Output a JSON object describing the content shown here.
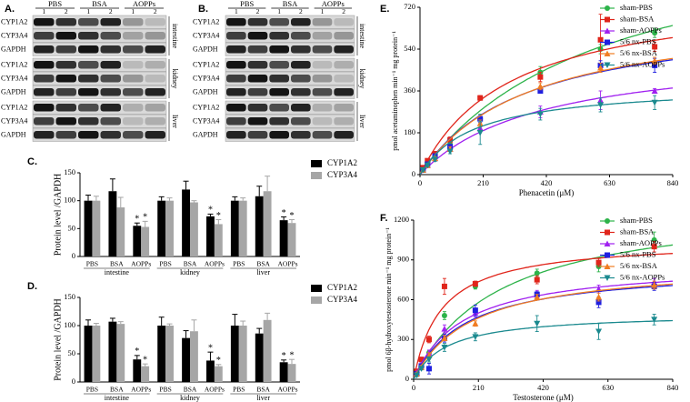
{
  "blots": [
    {
      "panel": "A.",
      "treatments": [
        "PBS",
        "BSA",
        "AOPPs"
      ],
      "lanes": [
        "1",
        "2"
      ],
      "proteins": [
        "CYP1A2",
        "CYP3A4",
        "GAPDH"
      ],
      "tissues": [
        "intestine",
        "kidney",
        "liver"
      ]
    },
    {
      "panel": "B.",
      "treatments": [
        "PBS",
        "BSA",
        "AOPPs"
      ],
      "lanes": [
        "1",
        "2"
      ],
      "proteins": [
        "CYP1A2",
        "CYP3A4",
        "GAPDH"
      ],
      "tissues": [
        "intestine",
        "kidney",
        "liver"
      ]
    }
  ],
  "chart_data": [
    {
      "type": "bar",
      "panel": "C.",
      "y_label": "Protein level /GAPDH",
      "categories": [
        "PBS",
        "BSA",
        "AOPPs",
        "PBS",
        "BSA",
        "AOPPs",
        "PBS",
        "BSA",
        "AOPPs"
      ],
      "groups": [
        "intestine",
        "kidney",
        "liver"
      ],
      "ylim": [
        0,
        150
      ],
      "yticks": [
        0,
        50,
        100,
        150
      ],
      "legend": "right",
      "series": [
        {
          "name": "CYP1A2",
          "color": "#000000",
          "values": [
            100,
            117,
            55,
            100,
            120,
            72,
            100,
            108,
            65
          ],
          "errors": [
            10,
            22,
            5,
            7,
            15,
            4,
            7,
            18,
            6
          ],
          "labels": [
            null,
            null,
            "*",
            null,
            null,
            "*",
            null,
            null,
            "*"
          ]
        },
        {
          "name": "CYP3A4",
          "color": "#a6a6a6",
          "values": [
            100,
            88,
            53,
            100,
            97,
            58,
            100,
            117,
            60
          ],
          "errors": [
            8,
            18,
            10,
            5,
            3,
            8,
            5,
            27,
            6
          ],
          "labels": [
            null,
            null,
            "*",
            null,
            null,
            "*",
            null,
            null,
            "*"
          ]
        }
      ]
    },
    {
      "type": "bar",
      "panel": "D.",
      "y_label": "Protein level /GAPDH",
      "categories": [
        "PBS",
        "BSA",
        "AOPPs",
        "PBS",
        "BSA",
        "AOPPs",
        "PBS",
        "BSA",
        "AOPPs"
      ],
      "groups": [
        "intestine",
        "kidney",
        "liver"
      ],
      "ylim": [
        0,
        150
      ],
      "yticks": [
        0,
        50,
        100,
        150
      ],
      "legend": "right",
      "series": [
        {
          "name": "CYP1A2",
          "color": "#000000",
          "values": [
            100,
            107,
            40,
            100,
            78,
            38,
            100,
            86,
            35
          ],
          "errors": [
            10,
            6,
            7,
            15,
            13,
            15,
            20,
            9,
            4
          ],
          "labels": [
            null,
            null,
            "*",
            null,
            null,
            "*",
            null,
            null,
            "*"
          ]
        },
        {
          "name": "CYP3A4",
          "color": "#a6a6a6",
          "values": [
            100,
            103,
            28,
            100,
            90,
            28,
            100,
            110,
            32
          ],
          "errors": [
            4,
            4,
            4,
            3,
            20,
            3,
            8,
            12,
            8
          ],
          "labels": [
            null,
            null,
            "*",
            null,
            null,
            "*",
            null,
            null,
            "*"
          ]
        }
      ]
    },
    {
      "type": "scatter",
      "panel": "E.",
      "x_label": "Phenacetin (μM)",
      "y_label": "pmol acetaminophen min⁻¹ mg protein⁻¹",
      "x": [
        10,
        25,
        50,
        100,
        200,
        400,
        600,
        780
      ],
      "xlim": [
        0,
        840
      ],
      "xticks": [
        0,
        210,
        420,
        630,
        840
      ],
      "ylim": [
        0,
        720
      ],
      "yticks": [
        0,
        180,
        360,
        540,
        720
      ],
      "legend": "upper right",
      "series": [
        {
          "name": "sham-PBS",
          "color": "#2db34a",
          "marker": "circle",
          "values": [
            20,
            50,
            80,
            130,
            240,
            440,
            540,
            610
          ],
          "errors": [
            5,
            8,
            10,
            15,
            20,
            25,
            20,
            20
          ],
          "fit_vmax": 1100,
          "fit_km": 600
        },
        {
          "name": "sham-BSA",
          "color": "#e0251b",
          "marker": "square",
          "values": [
            30,
            60,
            90,
            150,
            330,
            420,
            580,
            550
          ],
          "errors": [
            5,
            8,
            10,
            12,
            10,
            20,
            110,
            20
          ],
          "fit_vmax": 800,
          "fit_km": 300
        },
        {
          "name": "sham-AOPPs",
          "color": "#a020f0",
          "marker": "triangle-up",
          "values": [
            20,
            40,
            70,
            110,
            200,
            270,
            320,
            360
          ],
          "errors": [
            5,
            6,
            8,
            10,
            15,
            25,
            40,
            10
          ],
          "fit_vmax": 550,
          "fit_km": 400
        },
        {
          "name": "5/6 nx-PBS",
          "color": "#1f1fe0",
          "marker": "square",
          "values": [
            20,
            45,
            80,
            120,
            240,
            360,
            470,
            470
          ],
          "errors": [
            5,
            6,
            8,
            10,
            15,
            10,
            20,
            30
          ],
          "fit_vmax": 700,
          "fit_km": 350
        },
        {
          "name": "5/6 nx-BSA",
          "color": "#f07d22",
          "marker": "triangle-up",
          "values": [
            20,
            40,
            70,
            110,
            220,
            380,
            460,
            490
          ],
          "errors": [
            5,
            6,
            8,
            10,
            15,
            15,
            20,
            15
          ],
          "fit_vmax": 720,
          "fit_km": 370
        },
        {
          "name": "5/6 nx-AOPPs",
          "color": "#1b8a8f",
          "marker": "triangle-down",
          "values": [
            20,
            40,
            65,
            100,
            180,
            260,
            300,
            310
          ],
          "errors": [
            5,
            6,
            8,
            10,
            50,
            25,
            30,
            30
          ],
          "fit_vmax": 390,
          "fit_km": 180
        }
      ]
    },
    {
      "type": "scatter",
      "panel": "F.",
      "x_label": "Testosterone (μM)",
      "y_label": "pmol 6β-hydroxytestosterone min⁻¹ mg protein⁻¹",
      "x": [
        10,
        25,
        50,
        100,
        200,
        400,
        600,
        780
      ],
      "xlim": [
        0,
        840
      ],
      "xticks": [
        0,
        210,
        420,
        630,
        840
      ],
      "ylim": [
        0,
        1200
      ],
      "yticks": [
        0,
        300,
        600,
        900,
        1200
      ],
      "legend": "upper right",
      "series": [
        {
          "name": "sham-PBS",
          "color": "#2db34a",
          "marker": "circle",
          "values": [
            50,
            100,
            200,
            480,
            700,
            800,
            850,
            1050
          ],
          "errors": [
            10,
            15,
            20,
            30,
            20,
            30,
            40,
            60
          ],
          "fit_vmax": 1350,
          "fit_km": 280
        },
        {
          "name": "sham-BSA",
          "color": "#e0251b",
          "marker": "square",
          "values": [
            60,
            150,
            300,
            700,
            720,
            750,
            880,
            1000
          ],
          "errors": [
            10,
            15,
            25,
            60,
            20,
            30,
            30,
            40
          ],
          "fit_vmax": 1050,
          "fit_km": 90
        },
        {
          "name": "sham-AOPPs",
          "color": "#a020f0",
          "marker": "triangle-up",
          "values": [
            50,
            110,
            200,
            380,
            500,
            640,
            680,
            730
          ],
          "errors": [
            10,
            15,
            20,
            30,
            30,
            30,
            30,
            30
          ],
          "fit_vmax": 880,
          "fit_km": 160
        },
        {
          "name": "5/6 nx-PBS",
          "color": "#1f1fe0",
          "marker": "square",
          "values": [
            40,
            100,
            80,
            310,
            520,
            640,
            580,
            700
          ],
          "errors": [
            10,
            15,
            40,
            30,
            40,
            20,
            40,
            30
          ],
          "fit_vmax": 850,
          "fit_km": 170
        },
        {
          "name": "5/6 nx-BSA",
          "color": "#f07d22",
          "marker": "triangle-up",
          "values": [
            40,
            90,
            180,
            310,
            420,
            620,
            620,
            710
          ],
          "errors": [
            10,
            15,
            20,
            20,
            20,
            20,
            30,
            30
          ],
          "fit_vmax": 880,
          "fit_km": 190
        },
        {
          "name": "5/6 nx-AOPPs",
          "color": "#1b8a8f",
          "marker": "triangle-down",
          "values": [
            30,
            80,
            150,
            240,
            320,
            420,
            360,
            450
          ],
          "errors": [
            10,
            10,
            20,
            30,
            30,
            60,
            60,
            40
          ],
          "fit_vmax": 500,
          "fit_km": 110
        }
      ]
    }
  ]
}
